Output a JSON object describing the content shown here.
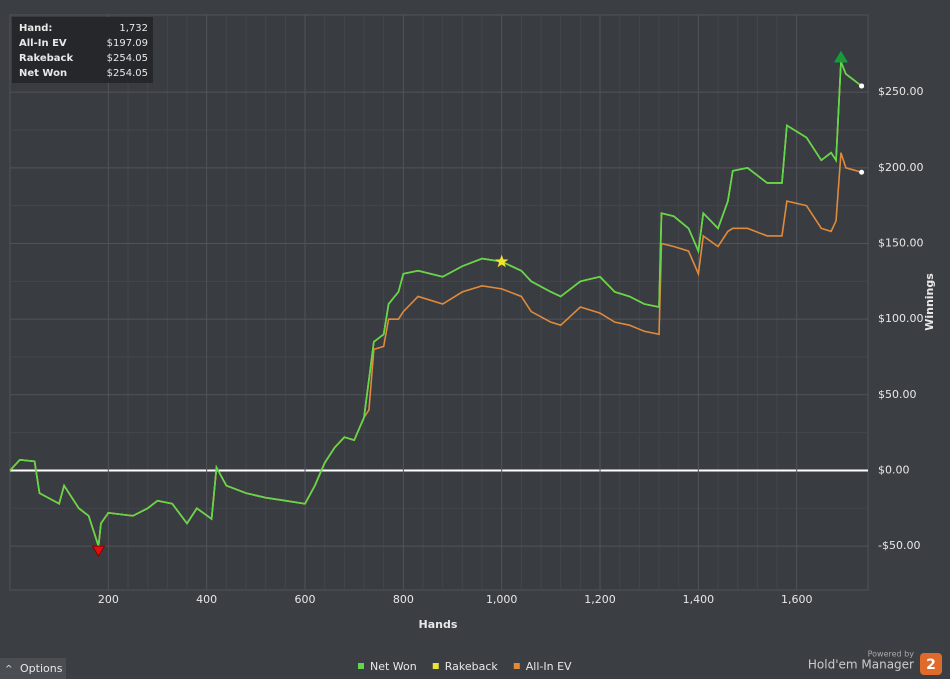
{
  "chart_data": {
    "type": "line",
    "x_label": "Hands",
    "y_label": "Winnings",
    "xlim": [
      0,
      1745
    ],
    "ylim": [
      -79,
      301
    ],
    "xticks": [
      200,
      400,
      600,
      800,
      {
        "value": 1000,
        "label": "1,000"
      },
      {
        "value": 1200,
        "label": "1,200"
      },
      {
        "value": 1400,
        "label": "1,400"
      },
      {
        "value": 1600,
        "label": "1,600"
      }
    ],
    "yticks": [
      {
        "value": -50,
        "label": "-$50.00"
      },
      {
        "value": 0,
        "label": "$0.00"
      },
      {
        "value": 50,
        "label": "$50.00"
      },
      {
        "value": 100,
        "label": "$100.00"
      },
      {
        "value": 150,
        "label": "$150.00"
      },
      {
        "value": 200,
        "label": "$200.00"
      },
      {
        "value": 250,
        "label": "$250.00"
      }
    ],
    "grid": true,
    "x": [
      0,
      20,
      50,
      60,
      100,
      110,
      140,
      160,
      180,
      185,
      200,
      250,
      280,
      300,
      330,
      360,
      380,
      410,
      420,
      440,
      480,
      520,
      560,
      600,
      620,
      640,
      660,
      680,
      700,
      720,
      730,
      740,
      760,
      770,
      790,
      800,
      830,
      880,
      920,
      960,
      1000,
      1040,
      1060,
      1100,
      1120,
      1160,
      1200,
      1230,
      1260,
      1290,
      1320,
      1325,
      1350,
      1380,
      1400,
      1410,
      1440,
      1460,
      1470,
      1500,
      1540,
      1570,
      1580,
      1620,
      1650,
      1670,
      1680,
      1690,
      1700,
      1732
    ],
    "series": [
      {
        "name": "Rakeback",
        "color": "#e8e23a",
        "values": [
          0,
          7,
          6,
          -15,
          -22,
          -10,
          -25,
          -30,
          -50,
          -35,
          -28,
          -30,
          -25,
          -20,
          -22,
          -35,
          -25,
          -32,
          2,
          -10,
          -15,
          -18,
          -20,
          -22,
          -10,
          5,
          15,
          22,
          20,
          35,
          60,
          85,
          90,
          110,
          118,
          130,
          132,
          128,
          135,
          140,
          138,
          132,
          125,
          118,
          115,
          125,
          128,
          118,
          115,
          110,
          108,
          170,
          168,
          160,
          145,
          170,
          160,
          178,
          198,
          200,
          190,
          190,
          228,
          220,
          205,
          210,
          205,
          270,
          262,
          254.05
        ]
      },
      {
        "name": "All-In EV",
        "color": "#e08a3c",
        "values": [
          0,
          7,
          6,
          -15,
          -22,
          -10,
          -25,
          -30,
          -50,
          -35,
          -28,
          -30,
          -25,
          -20,
          -22,
          -35,
          -25,
          -32,
          2,
          -10,
          -15,
          -18,
          -20,
          -22,
          -10,
          5,
          15,
          22,
          20,
          35,
          40,
          80,
          82,
          100,
          100,
          105,
          115,
          110,
          118,
          122,
          120,
          115,
          105,
          98,
          96,
          108,
          104,
          98,
          96,
          92,
          90,
          150,
          148,
          145,
          130,
          155,
          148,
          158,
          160,
          160,
          155,
          155,
          178,
          175,
          160,
          158,
          165,
          210,
          200,
          197.09
        ]
      },
      {
        "name": "Net Won",
        "color": "#5fd84a",
        "values": [
          0,
          7,
          6,
          -15,
          -22,
          -10,
          -25,
          -30,
          -50,
          -35,
          -28,
          -30,
          -25,
          -20,
          -22,
          -35,
          -25,
          -32,
          2,
          -10,
          -15,
          -18,
          -20,
          -22,
          -10,
          5,
          15,
          22,
          20,
          35,
          60,
          85,
          90,
          110,
          118,
          130,
          132,
          128,
          135,
          140,
          138,
          132,
          125,
          118,
          115,
          125,
          128,
          118,
          115,
          110,
          108,
          170,
          168,
          160,
          145,
          170,
          160,
          178,
          198,
          200,
          190,
          190,
          228,
          220,
          205,
          210,
          205,
          270,
          262,
          254.05
        ]
      }
    ],
    "legend_order": [
      "Net Won",
      "Rakeback",
      "All-In EV"
    ]
  },
  "info_box": {
    "rows": [
      {
        "label": "Hand:",
        "value": "1,732"
      },
      {
        "label": "All-In EV",
        "value": "$197.09"
      },
      {
        "label": "Rakeback",
        "value": "$254.05"
      },
      {
        "label": "Net Won",
        "value": "$254.05"
      }
    ]
  },
  "footer": {
    "options": "Options",
    "powered_by": "Powered by",
    "brand": "Hold'em Manager",
    "badge": "2"
  }
}
